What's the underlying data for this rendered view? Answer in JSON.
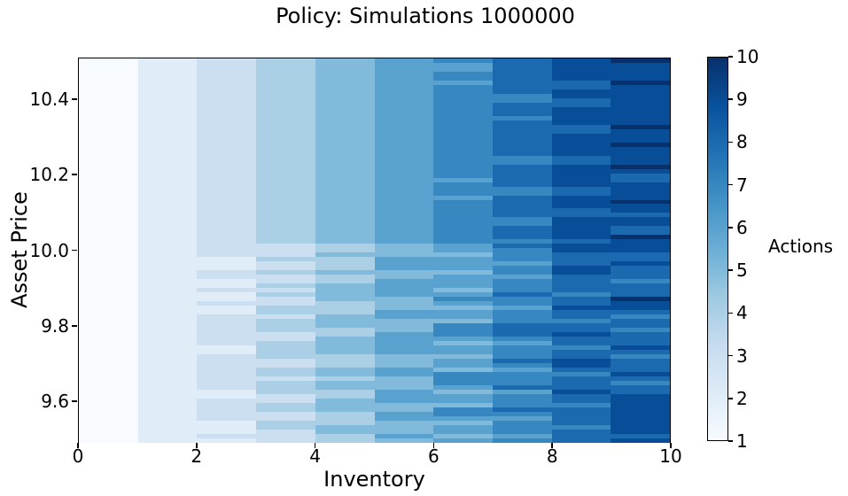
{
  "chart_data": {
    "type": "heatmap",
    "title": "Policy: Simulations 1000000",
    "xlabel": "Inventory",
    "ylabel": "Asset Price",
    "x_ticks": [
      "0",
      "2",
      "4",
      "6",
      "8",
      "10"
    ],
    "y_ticks": [
      "9.6",
      "9.8",
      "10.0",
      "10.2",
      "10.4"
    ],
    "x_range": [
      0,
      10
    ],
    "y_range": [
      9.49,
      10.51
    ],
    "grid": false,
    "n_cols": 10,
    "n_rows": 87,
    "value_label": "Actions",
    "value_range": [
      1,
      10
    ],
    "colorbar": {
      "label": "Actions",
      "ticks": [
        "1",
        "2",
        "3",
        "4",
        "5",
        "6",
        "7",
        "8",
        "9",
        "10"
      ],
      "gradient": [
        "#f7fbff",
        "#deebf7",
        "#c6dbef",
        "#9ecae1",
        "#6baed6",
        "#4292c6",
        "#2171b5",
        "#08519c",
        "#08306b"
      ]
    },
    "action_colors": {
      "1": "#f7fbff",
      "2": "#e0edf8",
      "3": "#cbdff1",
      "4": "#abd0e6",
      "5": "#82badb",
      "6": "#59a2cf",
      "7": "#3787c0",
      "8": "#1b6aaf",
      "9": "#084d97",
      "10": "#08306b"
    },
    "matrix_note": "Columns left-to-right = inventory 0..9 bins; each string chunk lists action values top-to-bottom (price 10.51 down to 9.49); A = 10.",
    "matrix_columns": [
      [
        "1111111111",
        "1111111111",
        "1111111111",
        "1111111111",
        "1111111111",
        "1111111111",
        "1111111111",
        "1111111111",
        "1111111"
      ],
      [
        "2222222222",
        "2222222222",
        "2222222222",
        "2222222222",
        "2222222222",
        "2222222222",
        "2222222222",
        "2222222222",
        "2222222"
      ],
      [
        "3333333333",
        "3333333333",
        "3333333333",
        "3333333333",
        "33333",
        "222332",
        "232232",
        "233333",
        "332233",
        "333333",
        "223333",
        "322232"
      ],
      [
        "4444444444",
        "4444444444",
        "4444444444",
        "4444444444",
        "44",
        "33343",
        "34334",
        "34334",
        "43444",
        "33444",
        "43344",
        "34443",
        "34433",
        "44333"
      ],
      [
        "5555555555",
        "5555555555",
        "5555555555",
        "5555555555",
        "55",
        "44544",
        "45445",
        "55544",
        "45554",
        "45555",
        "44455",
        "45544",
        "55544",
        "45544"
      ],
      [
        "6666666666",
        "6666666666",
        "6666666666",
        "6666666666",
        "66",
        "55566",
        "65566",
        "66555",
        "66555",
        "66666",
        "55566",
        "55566",
        "65566",
        "55565"
      ],
      [
        "7",
        "66",
        "77",
        "6",
        "7777777777",
        "7777777777",
        "7",
        "6",
        "777",
        "6",
        "7777777777",
        "66566",
        "65666",
        "56765",
        "66577",
        "76566",
        "56657",
        "77656",
        "65776",
        "56656"
      ],
      [
        "88888888",
        "77",
        "888",
        "7",
        "88888888",
        "77",
        "88888",
        "77",
        "88888",
        "77",
        "888",
        "7",
        "87776",
        "77677",
        "78776",
        "77788",
        "87677",
        "78767",
        "77867",
        "77876",
        "77767"
      ],
      [
        "99999",
        "88",
        "99",
        "88",
        "9999",
        "88",
        "99999",
        "88",
        "99999",
        "88",
        "999",
        "88",
        "99999",
        "8",
        "99888",
        "99888",
        "87889",
        "88788",
        "98878",
        "89987",
        "88898",
        "87888",
        "87888"
      ],
      [
        "A",
        "9999",
        "A",
        "999999999",
        "A",
        "999",
        "A",
        "9999",
        "A",
        "9",
        "88",
        "9999",
        "A",
        "99",
        "8",
        "99",
        "88",
        "A",
        "9",
        "99889",
        "88878",
        "88A99",
        "87887",
        "88898",
        "78889",
        "87889",
        "99999",
        "99989"
      ]
    ]
  }
}
